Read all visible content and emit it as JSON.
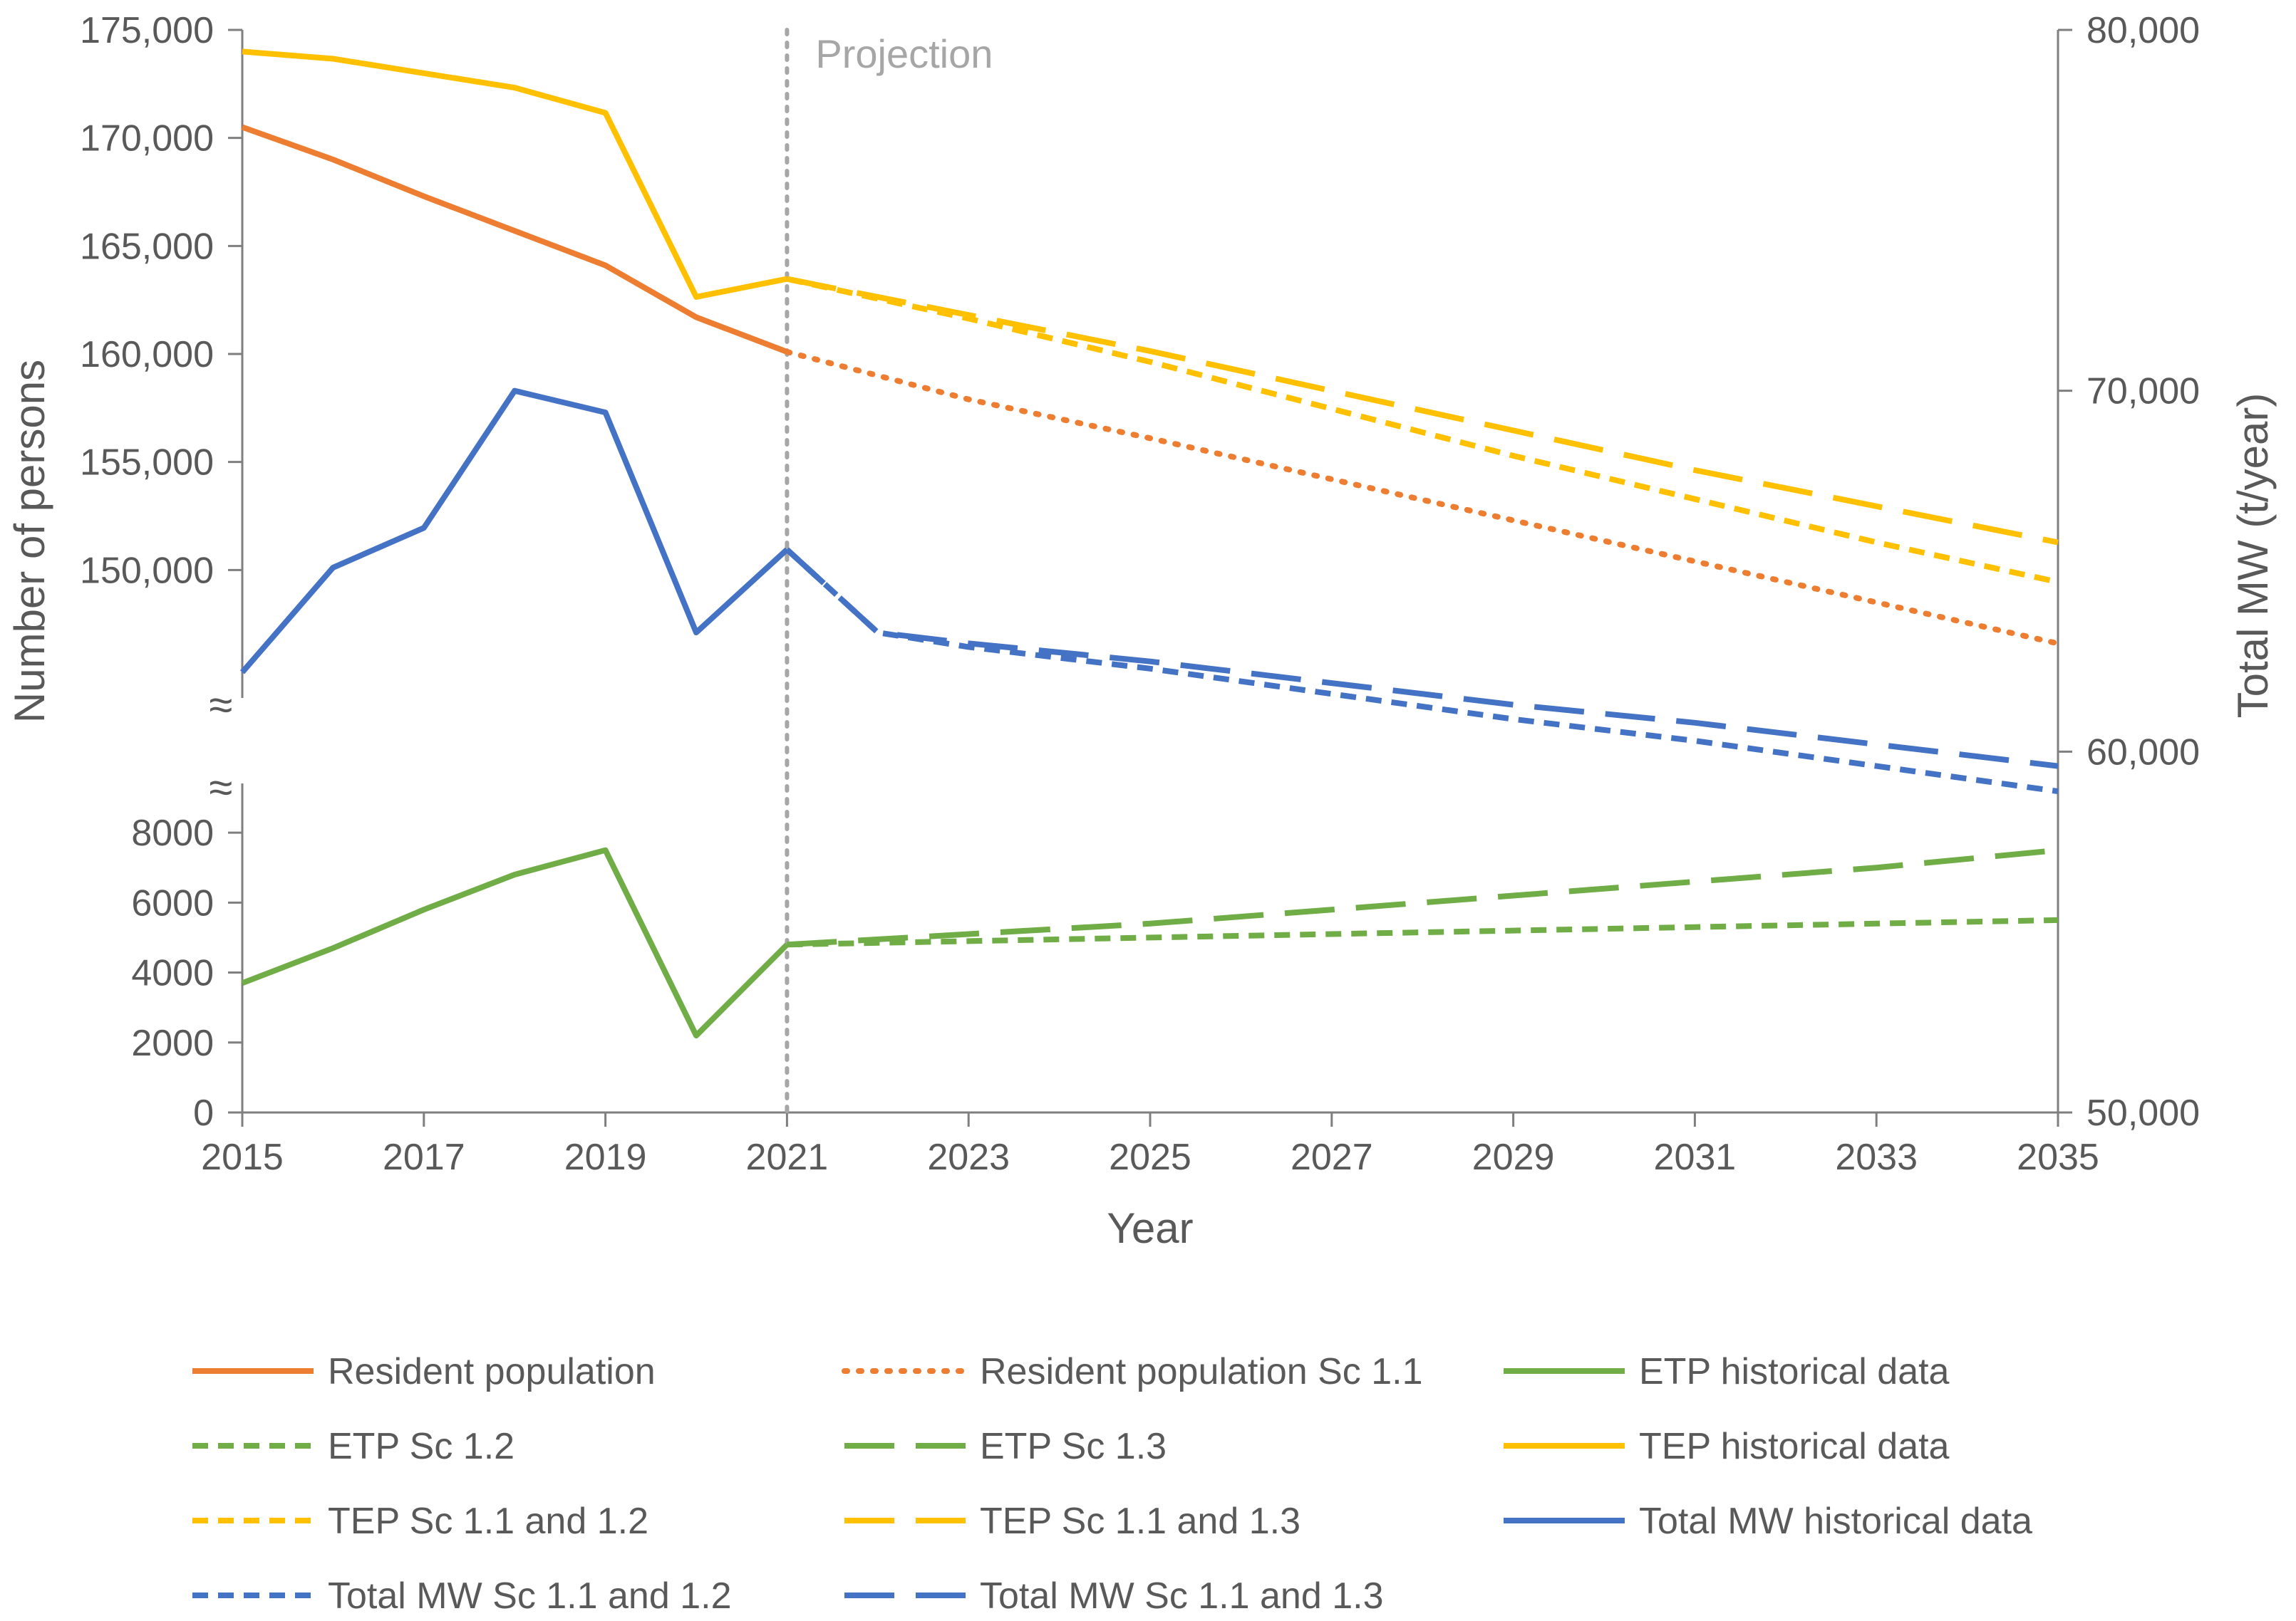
{
  "chart_data": {
    "type": "line",
    "xlabel": "Year",
    "ylabel_left": "Number of persons",
    "ylabel_right": "Total MW (t/year)",
    "projection_label": "Projection",
    "projection_start": 2021,
    "xlim": [
      2015,
      2035
    ],
    "x_ticks": [
      2015,
      2017,
      2019,
      2021,
      2023,
      2025,
      2027,
      2029,
      2031,
      2033,
      2035
    ],
    "x_tick_labels": [
      "2015",
      "2017",
      "2019",
      "2021",
      "2023",
      "2025",
      "2027",
      "2029",
      "2031",
      "2033",
      "2035"
    ],
    "axes": {
      "left_upper": {
        "range": [
          145000,
          175000
        ],
        "ticks": [
          150000,
          155000,
          160000,
          165000,
          170000,
          175000
        ],
        "tick_labels": [
          "150,000",
          "155,000",
          "160,000",
          "165,000",
          "170,000",
          "175,000"
        ]
      },
      "left_lower": {
        "range": [
          0,
          9000
        ],
        "ticks": [
          0,
          2000,
          4000,
          6000,
          8000
        ],
        "tick_labels": [
          "0",
          "2000",
          "4000",
          "6000",
          "8000"
        ]
      },
      "right": {
        "range": [
          50000,
          80000
        ],
        "ticks": [
          50000,
          60000,
          70000,
          80000
        ],
        "tick_labels": [
          "50,000",
          "60,000",
          "70,000",
          "80,000"
        ]
      },
      "axis_break_symbol": "≈"
    },
    "series": [
      {
        "id": "resident_hist",
        "name": "Resident population",
        "axis": "left_upper",
        "color": "#ED7D31",
        "dash": "solid",
        "x": [
          2015,
          2016,
          2017,
          2018,
          2019,
          2020,
          2021
        ],
        "values": [
          170500,
          169000,
          167300,
          165700,
          164100,
          161700,
          160100
        ]
      },
      {
        "id": "resident_sc11",
        "name": "Resident population Sc 1.1",
        "axis": "left_upper",
        "color": "#ED7D31",
        "dash": "dot",
        "x": [
          2021,
          2023,
          2025,
          2027,
          2029,
          2031,
          2033,
          2035
        ],
        "values": [
          160100,
          157900,
          156100,
          154200,
          152300,
          150400,
          148500,
          146600
        ]
      },
      {
        "id": "etp_hist",
        "name": "ETP historical data",
        "axis": "left_lower",
        "color": "#70AD47",
        "dash": "solid",
        "x": [
          2015,
          2016,
          2017,
          2018,
          2019,
          2020,
          2021
        ],
        "values": [
          3700,
          4700,
          5800,
          6800,
          7500,
          2200,
          4800
        ]
      },
      {
        "id": "etp_sc12",
        "name": "ETP Sc 1.2",
        "axis": "left_lower",
        "color": "#70AD47",
        "dash": "short",
        "x": [
          2021,
          2023,
          2025,
          2027,
          2029,
          2031,
          2033,
          2035
        ],
        "values": [
          4800,
          4900,
          5000,
          5100,
          5200,
          5300,
          5400,
          5500
        ]
      },
      {
        "id": "etp_sc13",
        "name": "ETP Sc 1.3",
        "axis": "left_lower",
        "color": "#70AD47",
        "dash": "long",
        "x": [
          2021,
          2023,
          2025,
          2027,
          2029,
          2031,
          2033,
          2035
        ],
        "values": [
          4800,
          5100,
          5400,
          5800,
          6200,
          6600,
          7000,
          7500
        ]
      },
      {
        "id": "tep_hist",
        "name": "TEP historical data",
        "axis": "right",
        "color": "#FFC000",
        "dash": "solid",
        "x": [
          2015,
          2016,
          2017,
          2018,
          2019,
          2020,
          2021
        ],
        "values": [
          79400,
          79200,
          78800,
          78400,
          77700,
          72600,
          73100
        ]
      },
      {
        "id": "tep_sc1112",
        "name": "TEP Sc 1.1 and 1.2",
        "axis": "right",
        "color": "#FFC000",
        "dash": "short",
        "x": [
          2021,
          2023,
          2025,
          2027,
          2029,
          2031,
          2033,
          2035
        ],
        "values": [
          73100,
          72000,
          70800,
          69500,
          68200,
          67000,
          65800,
          64700
        ]
      },
      {
        "id": "tep_sc1113",
        "name": "TEP Sc 1.1 and 1.3",
        "axis": "right",
        "color": "#FFC000",
        "dash": "long",
        "x": [
          2021,
          2023,
          2025,
          2027,
          2029,
          2031,
          2033,
          2035
        ],
        "values": [
          73100,
          72100,
          71100,
          70000,
          68900,
          67800,
          66800,
          65800
        ]
      },
      {
        "id": "mw_hist",
        "name": "Total MW historical data",
        "axis": "right",
        "color": "#4472C4",
        "dash": "solid",
        "x": [
          2015,
          2016,
          2017,
          2018,
          2019,
          2020,
          2021
        ],
        "values": [
          62200,
          65100,
          66200,
          70000,
          69400,
          63300,
          65600
        ]
      },
      {
        "id": "mw_sc1112",
        "name": "Total MW Sc 1.1 and 1.2",
        "axis": "right",
        "color": "#4472C4",
        "dash": "short",
        "x": [
          2021,
          2022,
          2023,
          2025,
          2027,
          2029,
          2031,
          2033,
          2035
        ],
        "values": [
          65600,
          63300,
          62900,
          62300,
          61600,
          60900,
          60300,
          59600,
          58900
        ]
      },
      {
        "id": "mw_sc1113",
        "name": "Total MW Sc 1.1 and 1.3",
        "axis": "right",
        "color": "#4472C4",
        "dash": "long",
        "x": [
          2021,
          2022,
          2023,
          2025,
          2027,
          2029,
          2031,
          2033,
          2035
        ],
        "values": [
          65600,
          63300,
          63000,
          62500,
          61900,
          61300,
          60800,
          60200,
          59600
        ]
      }
    ],
    "legend": {
      "position": "bottom",
      "columns": 3,
      "order": [
        "resident_hist",
        "resident_sc11",
        "etp_hist",
        "etp_sc12",
        "etp_sc13",
        "tep_hist",
        "tep_sc1112",
        "tep_sc1113",
        "mw_hist",
        "mw_sc1112",
        "mw_sc1113"
      ]
    }
  }
}
